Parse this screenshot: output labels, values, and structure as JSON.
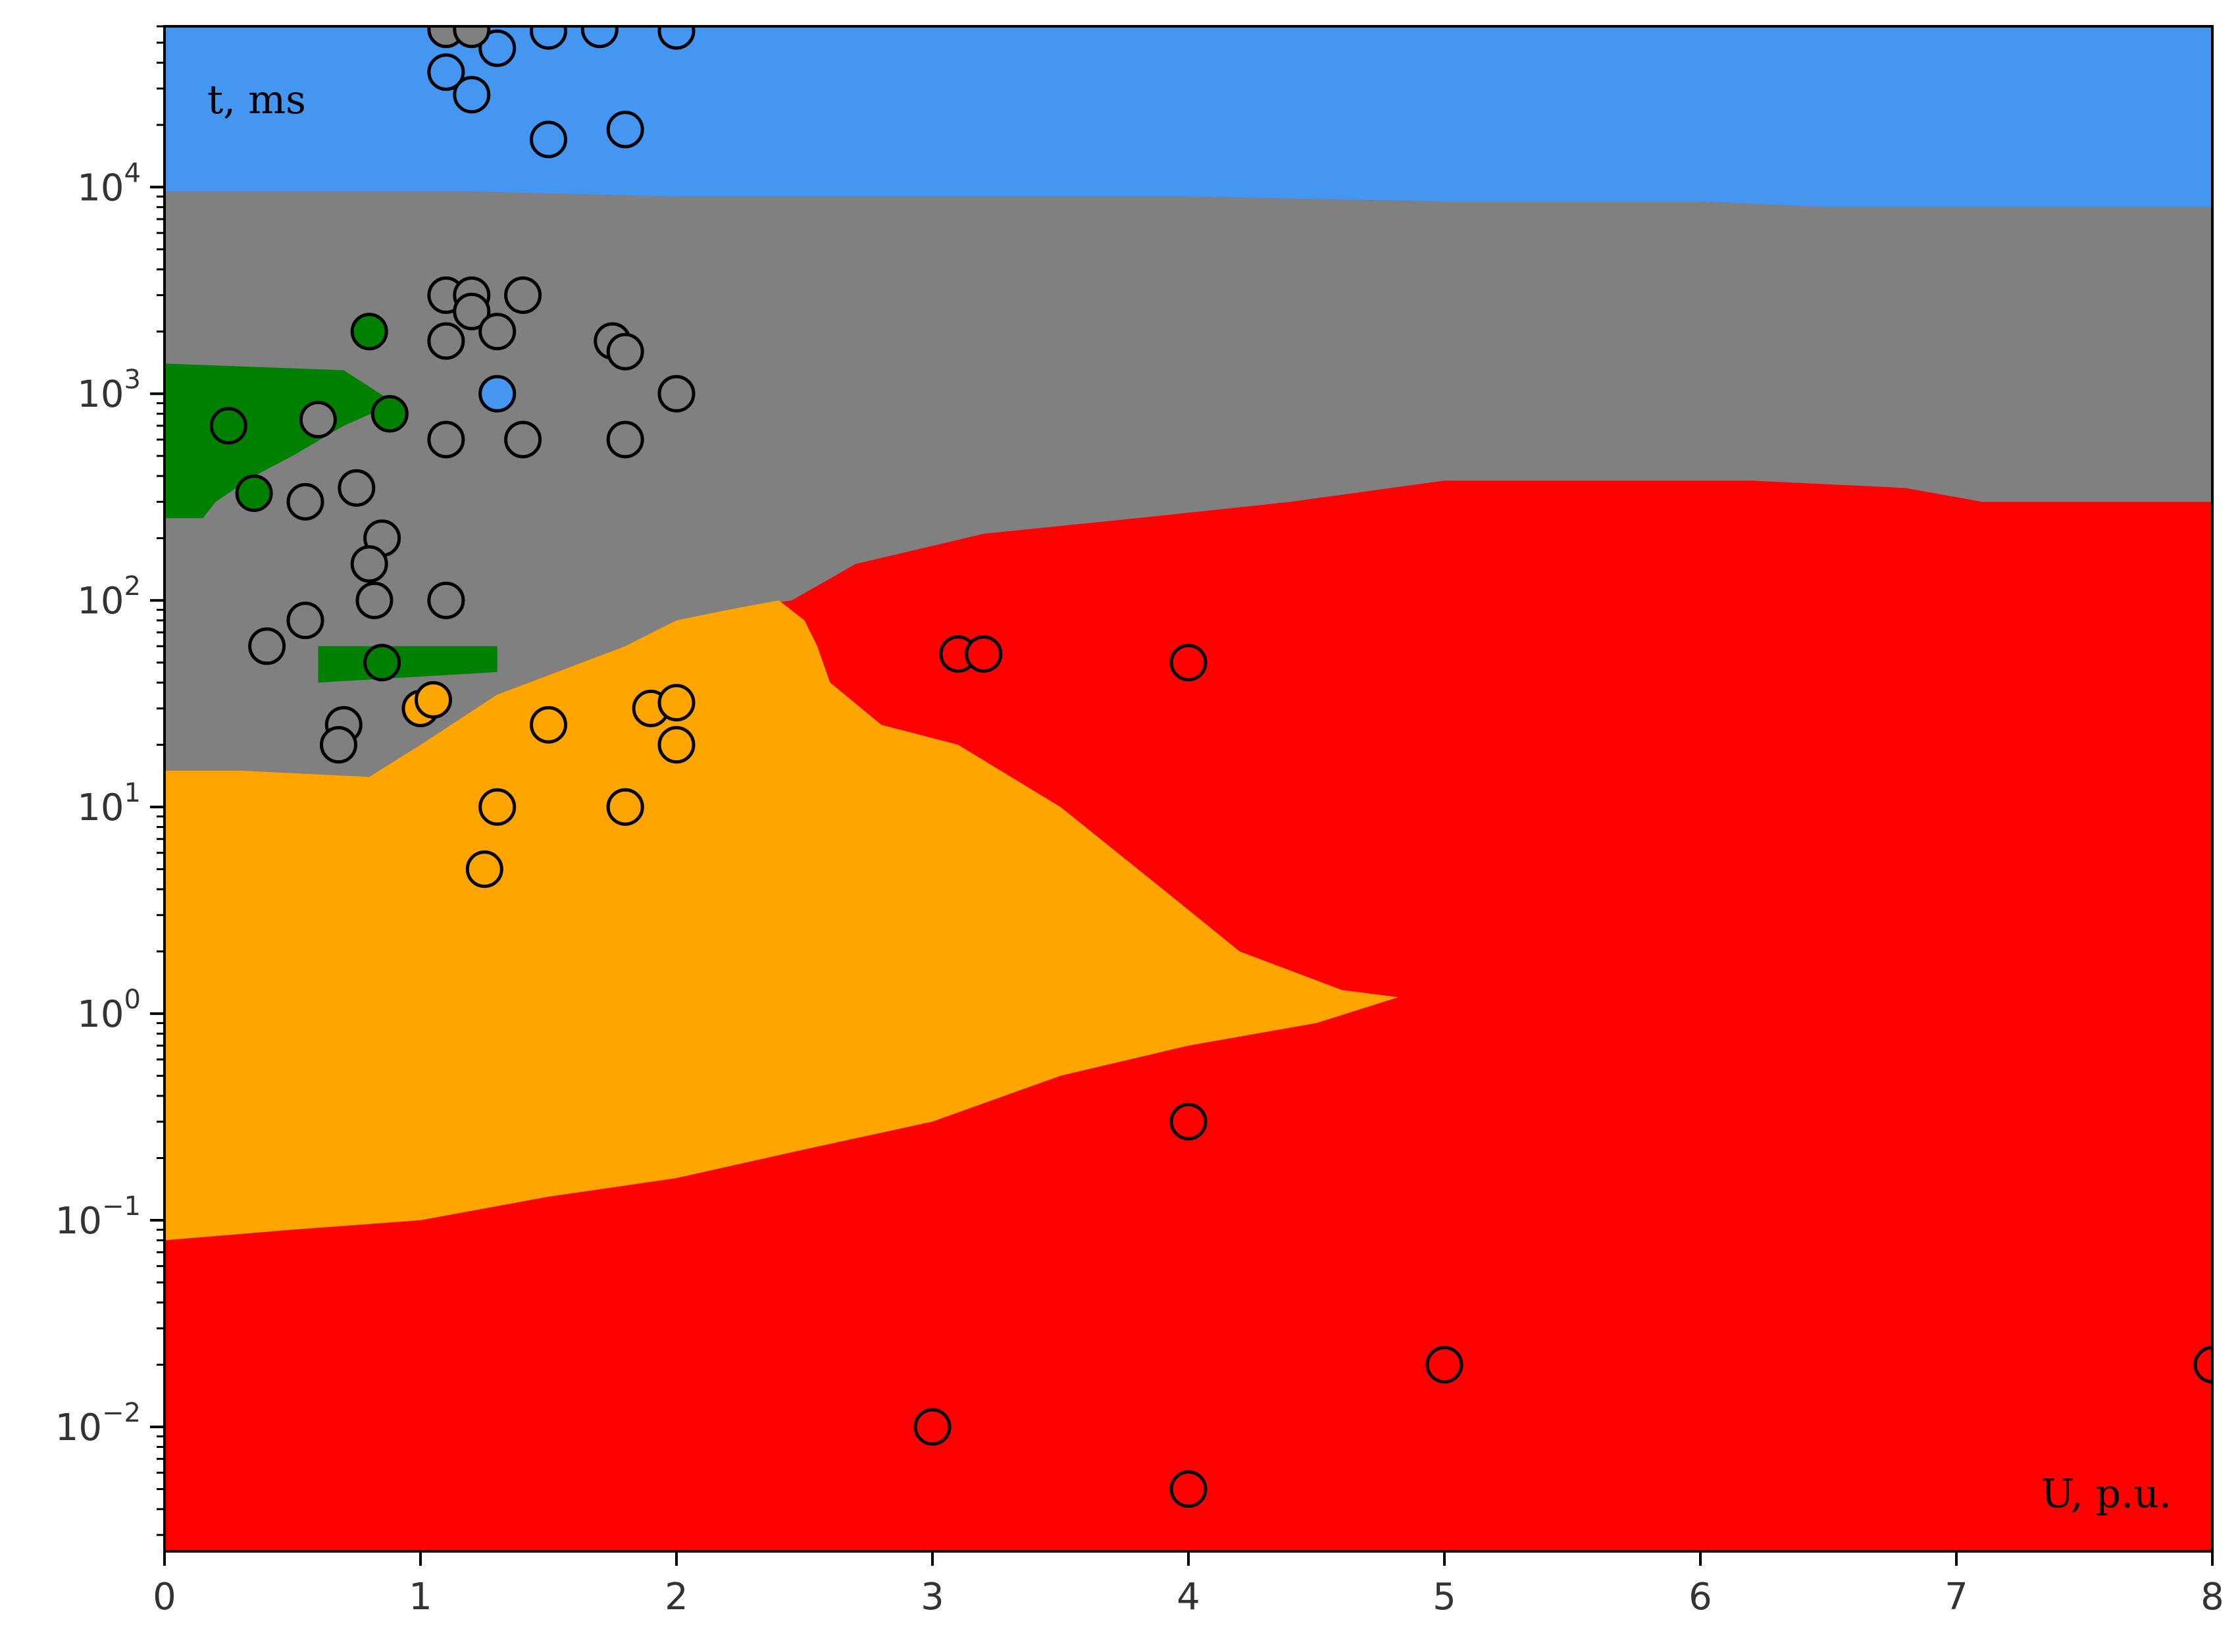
{
  "chart_data": {
    "type": "scatter",
    "title": "",
    "xlabel": "U, p.u.",
    "ylabel": "t, ms",
    "xlim": [
      0,
      8
    ],
    "ylim": [
      0.0025,
      60000
    ],
    "y_scale": "log",
    "grid": false,
    "x_ticks": [
      {
        "value": 0,
        "label": "0"
      },
      {
        "value": 1,
        "label": "1"
      },
      {
        "value": 2,
        "label": "2"
      },
      {
        "value": 3,
        "label": "3"
      },
      {
        "value": 4,
        "label": "4"
      },
      {
        "value": 5,
        "label": "5"
      },
      {
        "value": 6,
        "label": "6"
      },
      {
        "value": 7,
        "label": "7"
      },
      {
        "value": 8,
        "label": "8"
      }
    ],
    "y_ticks": [
      {
        "value": 0.01,
        "base": "10",
        "exp": "−2"
      },
      {
        "value": 0.1,
        "base": "10",
        "exp": "−1"
      },
      {
        "value": 1,
        "base": "10",
        "exp": "0"
      },
      {
        "value": 10,
        "base": "10",
        "exp": "1"
      },
      {
        "value": 100,
        "base": "10",
        "exp": "2"
      },
      {
        "value": 1000,
        "base": "10",
        "exp": "3"
      },
      {
        "value": 10000,
        "base": "10",
        "exp": "4"
      }
    ],
    "colors": {
      "red": "#ff0000",
      "orange": "#ffa500",
      "gray": "#808080",
      "green": "#008000",
      "blue": "#4496f0"
    },
    "regions": [
      {
        "class": "gray",
        "boundary": [
          [
            0,
            15
          ],
          [
            0.3,
            15
          ],
          [
            0.8,
            14
          ],
          [
            1.0,
            20
          ],
          [
            1.3,
            35
          ],
          [
            1.8,
            60
          ],
          [
            2.2,
            90
          ],
          [
            2.45,
            100
          ],
          [
            2.7,
            150
          ],
          [
            3.2,
            210
          ],
          [
            3.8,
            250
          ],
          [
            4.4,
            300
          ],
          [
            5.0,
            380
          ],
          [
            6.2,
            380
          ],
          [
            6.8,
            350
          ],
          [
            7.1,
            300
          ],
          [
            8,
            300
          ],
          [
            8,
            8000
          ],
          [
            6.5,
            8000
          ],
          [
            6.0,
            8500
          ],
          [
            5.0,
            8500
          ],
          [
            4.0,
            9000
          ],
          [
            2.9,
            9000
          ],
          [
            2.0,
            9000
          ],
          [
            1.2,
            9500
          ],
          [
            0,
            9500
          ]
        ]
      },
      {
        "class": "blue",
        "boundary": [
          [
            0,
            9500
          ],
          [
            1.2,
            9500
          ],
          [
            2.0,
            9000
          ],
          [
            2.9,
            9000
          ],
          [
            4.0,
            9000
          ],
          [
            5.0,
            8500
          ],
          [
            6.0,
            8500
          ],
          [
            6.5,
            8000
          ],
          [
            8,
            8000
          ],
          [
            8,
            60000
          ],
          [
            0,
            60000
          ]
        ]
      },
      {
        "class": "orange",
        "boundary": [
          [
            0,
            0.08
          ],
          [
            0.5,
            0.09
          ],
          [
            1.0,
            0.1
          ],
          [
            1.5,
            0.13
          ],
          [
            2.0,
            0.16
          ],
          [
            2.5,
            0.22
          ],
          [
            3.0,
            0.3
          ],
          [
            3.5,
            0.5
          ],
          [
            4.0,
            0.7
          ],
          [
            4.5,
            0.9
          ],
          [
            4.82,
            1.2
          ],
          [
            4.6,
            1.3
          ],
          [
            4.2,
            2.0
          ],
          [
            3.9,
            4.0
          ],
          [
            3.5,
            10
          ],
          [
            3.1,
            20
          ],
          [
            2.8,
            25
          ],
          [
            2.6,
            40
          ],
          [
            2.55,
            60
          ],
          [
            2.5,
            80
          ],
          [
            2.4,
            100
          ],
          [
            2.2,
            90
          ],
          [
            2.0,
            80
          ],
          [
            1.8,
            60
          ],
          [
            1.3,
            35
          ],
          [
            1.0,
            20
          ],
          [
            0.8,
            14
          ],
          [
            0.3,
            15
          ],
          [
            0,
            15
          ]
        ]
      },
      {
        "class": "green",
        "boundary": [
          [
            0,
            1400
          ],
          [
            0.7,
            1300
          ],
          [
            0.9,
            900
          ],
          [
            0.7,
            700
          ],
          [
            0.5,
            500
          ],
          [
            0.35,
            400
          ],
          [
            0.2,
            300
          ],
          [
            0.15,
            250
          ],
          [
            0,
            250
          ]
        ]
      },
      {
        "class": "green",
        "boundary": [
          [
            0.6,
            40
          ],
          [
            1.3,
            45
          ],
          [
            1.3,
            60
          ],
          [
            0.6,
            60
          ]
        ]
      }
    ],
    "series": [
      {
        "class": "blue",
        "points": [
          [
            1.1,
            36000
          ],
          [
            1.2,
            28000
          ],
          [
            1.3,
            47000
          ],
          [
            1.5,
            17000
          ],
          [
            1.8,
            19000
          ],
          [
            1.5,
            57000
          ],
          [
            1.7,
            58000
          ],
          [
            2.0,
            57000
          ]
        ]
      },
      {
        "class": "gray",
        "points": [
          [
            1.1,
            3000
          ],
          [
            1.2,
            3000
          ],
          [
            1.4,
            3000
          ],
          [
            1.2,
            2500
          ],
          [
            1.3,
            2000
          ],
          [
            1.1,
            1800
          ],
          [
            1.75,
            1800
          ],
          [
            1.8,
            1600
          ],
          [
            2.0,
            1000
          ],
          [
            0.6,
            750
          ],
          [
            1.1,
            600
          ],
          [
            1.4,
            600
          ],
          [
            1.8,
            600
          ],
          [
            0.75,
            350
          ],
          [
            0.55,
            300
          ],
          [
            0.85,
            200
          ],
          [
            0.8,
            150
          ],
          [
            0.82,
            100
          ],
          [
            1.1,
            100
          ],
          [
            0.55,
            80
          ],
          [
            0.4,
            60
          ],
          [
            0.7,
            25
          ],
          [
            0.68,
            20
          ],
          [
            1.1,
            58000
          ],
          [
            1.2,
            58000
          ],
          [
            1.8,
            10
          ]
        ]
      },
      {
        "class": "green",
        "points": [
          [
            0.8,
            2000
          ],
          [
            0.25,
            700
          ],
          [
            0.88,
            800
          ],
          [
            0.35,
            330
          ],
          [
            0.85,
            50
          ]
        ]
      },
      {
        "class": "blue",
        "points": [
          [
            1.3,
            1000
          ]
        ]
      },
      {
        "class": "orange",
        "points": [
          [
            1.0,
            30
          ],
          [
            1.05,
            33
          ],
          [
            1.5,
            25
          ],
          [
            1.9,
            30
          ],
          [
            2.0,
            32
          ],
          [
            2.0,
            20
          ],
          [
            1.3,
            10
          ],
          [
            1.8,
            10
          ],
          [
            1.25,
            5
          ]
        ]
      },
      {
        "class": "red",
        "points": [
          [
            3.1,
            55
          ],
          [
            3.2,
            55
          ],
          [
            4.0,
            50
          ],
          [
            4.0,
            0.3
          ],
          [
            5.0,
            0.02
          ],
          [
            8.0,
            0.02
          ],
          [
            3.0,
            0.01
          ],
          [
            4.0,
            0.005
          ]
        ]
      }
    ]
  }
}
